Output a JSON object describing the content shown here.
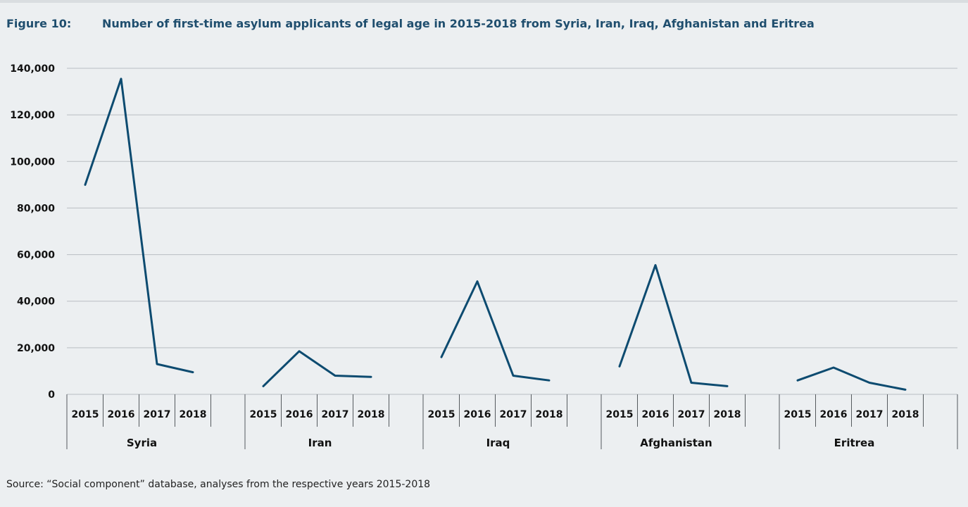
{
  "figure": {
    "number": "Figure 10:",
    "title": "Number of first-time asylum applicants of legal age in 2015-2018 from Syria, Iran, Iraq, Afghanistan and Eritrea"
  },
  "source": "Source: “Social component” database, analyses from the respective years 2015-2018",
  "colors": {
    "line": "#0d4b70",
    "grid": "#b9bec2",
    "axis": "#555a5e",
    "title": "#1f4e6e",
    "background": "#eceff1"
  },
  "chart_data": {
    "type": "line",
    "title": "Number of first-time asylum applicants of legal age in 2015-2018 from Syria, Iran, Iraq, Afghanistan and Eritrea",
    "groups": [
      "Syria",
      "Iran",
      "Iraq",
      "Afghanistan",
      "Eritrea"
    ],
    "years": [
      "2015",
      "2016",
      "2017",
      "2018"
    ],
    "series": [
      {
        "group": "Syria",
        "values": [
          90000,
          135500,
          13000,
          9500
        ]
      },
      {
        "group": "Iran",
        "values": [
          3500,
          18500,
          8000,
          7500
        ]
      },
      {
        "group": "Iraq",
        "values": [
          16000,
          48500,
          8000,
          6000
        ]
      },
      {
        "group": "Afghanistan",
        "values": [
          12000,
          55500,
          5000,
          3500
        ]
      },
      {
        "group": "Eritrea",
        "values": [
          6000,
          11500,
          5000,
          2000
        ]
      }
    ],
    "ylim": [
      0,
      140000
    ],
    "yticks": [
      "0",
      "20,000",
      "40,000",
      "60,000",
      "80,000",
      "100,000",
      "120,000",
      "140,000"
    ],
    "ytick_values": [
      0,
      20000,
      40000,
      60000,
      80000,
      100000,
      120000,
      140000
    ],
    "grid": true,
    "legend": "none"
  }
}
